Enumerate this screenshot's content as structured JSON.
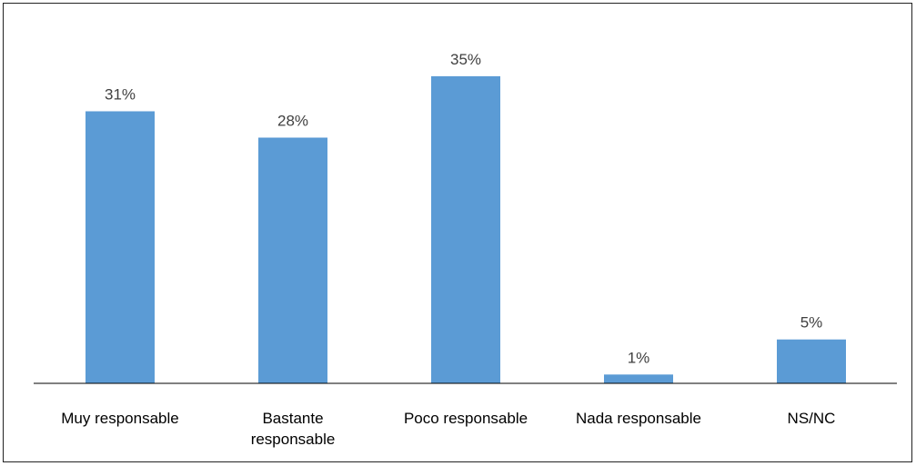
{
  "chart_data": {
    "type": "bar",
    "title": "",
    "xlabel": "",
    "ylabel": "",
    "categories": [
      [
        "Muy responsable"
      ],
      [
        "Bastante",
        "responsable"
      ],
      [
        "Poco responsable"
      ],
      [
        "Nada responsable"
      ],
      [
        "NS/NC"
      ]
    ],
    "values": [
      31,
      28,
      35,
      1,
      5
    ],
    "data_labels": [
      "31%",
      "28%",
      "35%",
      "1%",
      "5%"
    ],
    "value_unit": "%",
    "ylim": [
      0,
      35
    ],
    "grid": false,
    "legend": "none",
    "bar_color": "#5B9BD5",
    "axis_color": "#000000",
    "label_color": "#404040"
  }
}
